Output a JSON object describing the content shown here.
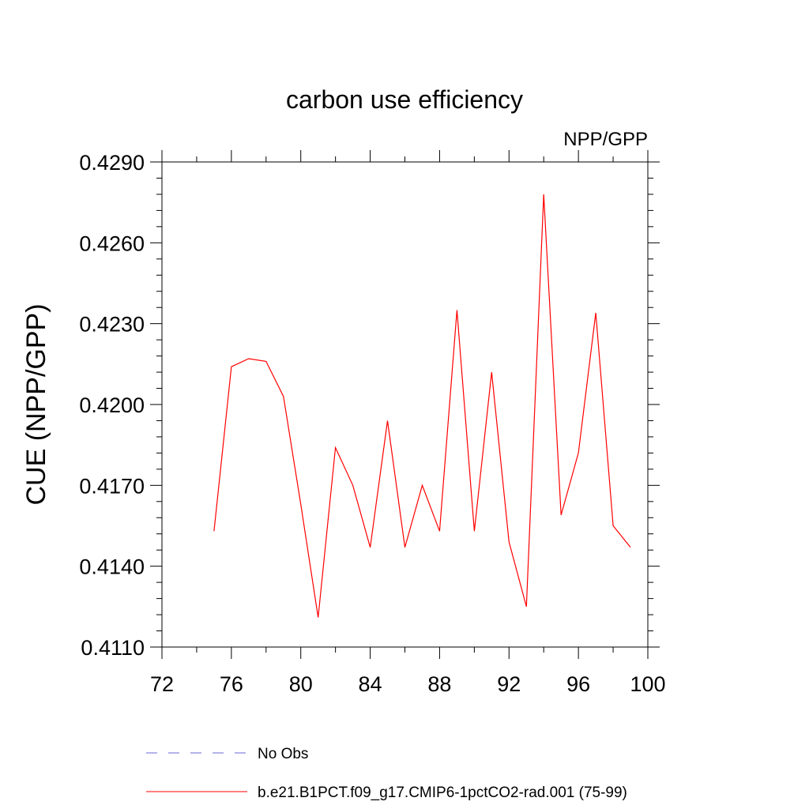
{
  "chart_data": {
    "type": "line",
    "title": "carbon use efficiency",
    "subtitle": "NPP/GPP",
    "xlabel": "",
    "ylabel": "CUE  (NPP/GPP)",
    "xlim": [
      72,
      100
    ],
    "ylim": [
      0.411,
      0.429
    ],
    "x_ticks": [
      72,
      76,
      80,
      84,
      88,
      92,
      96,
      100
    ],
    "x_tick_labels": [
      "72",
      "76",
      "80",
      "84",
      "88",
      "92",
      "96",
      "100"
    ],
    "x_minor_step": 2,
    "y_ticks": [
      0.411,
      0.414,
      0.417,
      0.42,
      0.423,
      0.426,
      0.429
    ],
    "y_tick_labels": [
      "0.4110",
      "0.4140",
      "0.4170",
      "0.4200",
      "0.4230",
      "0.4260",
      "0.4290"
    ],
    "y_minor_step": 0.0006,
    "grid": false,
    "legend_position": "bottom",
    "series": [
      {
        "name": "No Obs",
        "color": "#6a6ad8",
        "dash": "dashed",
        "x": [],
        "values": []
      },
      {
        "name": "b.e21.B1PCT.f09_g17.CMIP6-1pctCO2-rad.001 (75-99)",
        "color": "#ff0000",
        "dash": "solid",
        "x": [
          75,
          76,
          77,
          78,
          79,
          80,
          81,
          82,
          83,
          84,
          85,
          86,
          87,
          88,
          89,
          90,
          91,
          92,
          93,
          94,
          95,
          96,
          97,
          98,
          99
        ],
        "values": [
          0.4153,
          0.4214,
          0.4217,
          0.4216,
          0.4203,
          0.4163,
          0.4121,
          0.4184,
          0.417,
          0.4147,
          0.4194,
          0.4147,
          0.417,
          0.4153,
          0.4235,
          0.4153,
          0.4212,
          0.4149,
          0.4125,
          0.4278,
          0.4159,
          0.4182,
          0.4234,
          0.4155,
          0.4147
        ]
      }
    ]
  }
}
